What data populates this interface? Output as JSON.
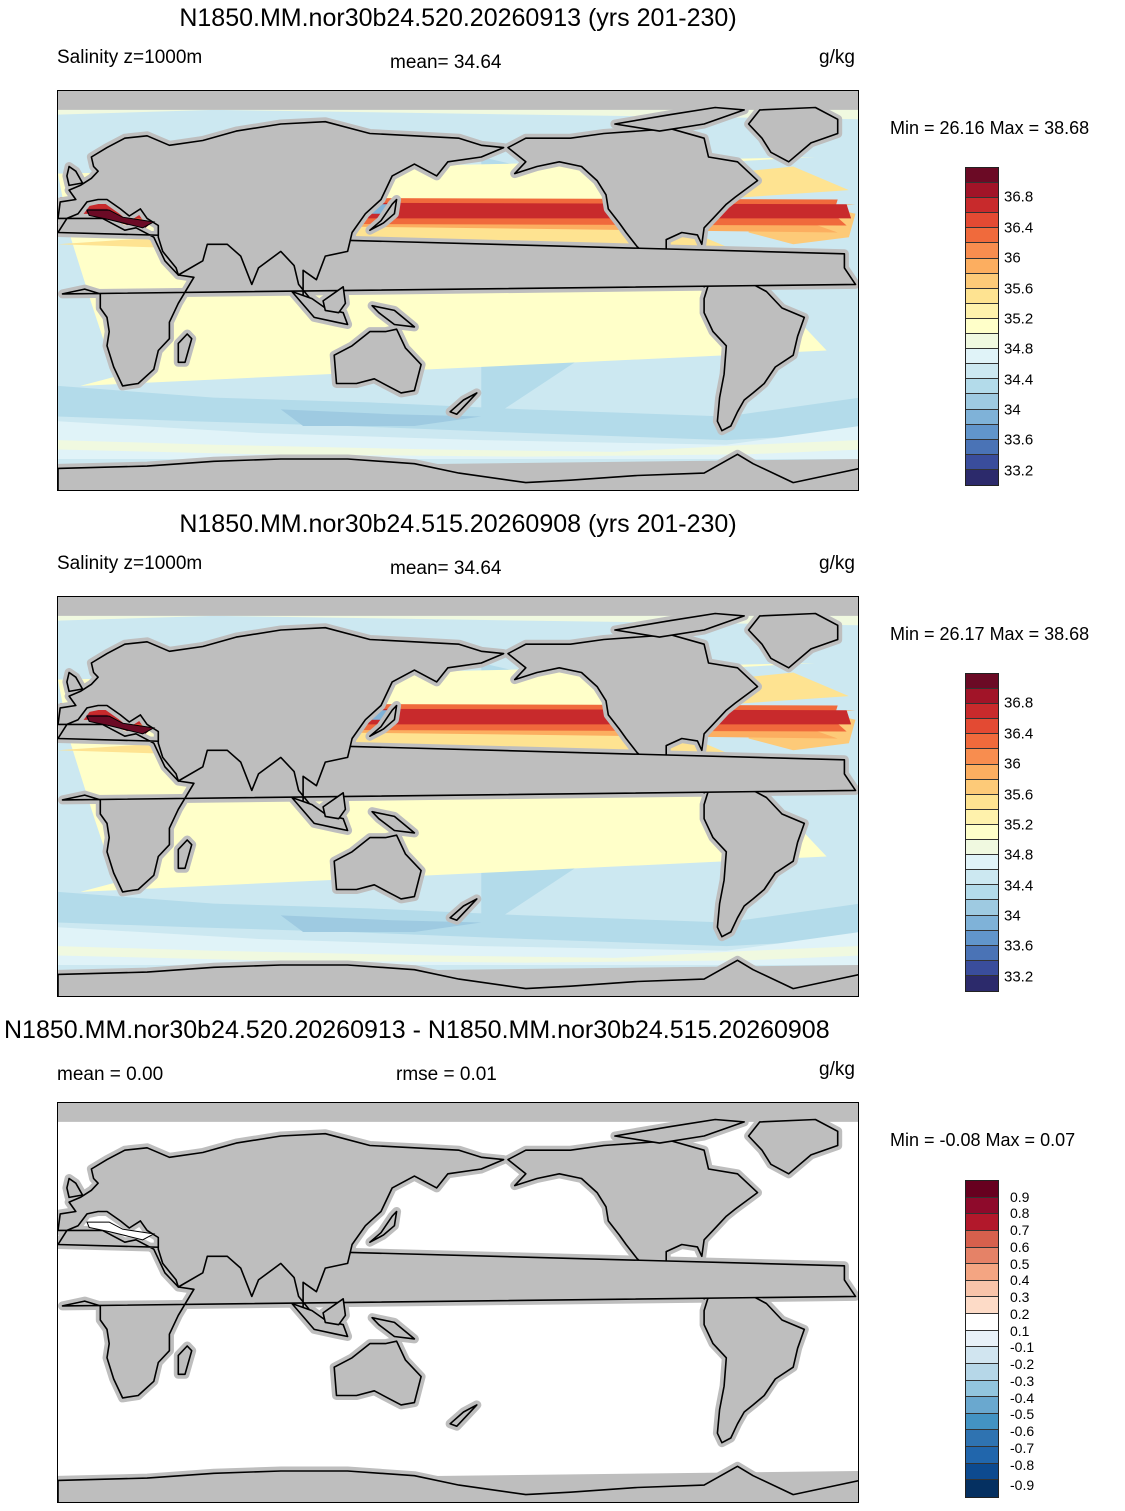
{
  "panels": [
    {
      "title": "N1850.MM.nor30b24.520.20260913 (yrs 201-230)",
      "left_label": "Salinity z=1000m",
      "mid_label": "mean=  34.64",
      "unit": "g/kg",
      "minmax": "Min =  26.16 Max =  38.68",
      "kind": "abs"
    },
    {
      "title": "N1850.MM.nor30b24.515.20260908 (yrs 201-230)",
      "left_label": "Salinity z=1000m",
      "mid_label": "mean=  34.64",
      "unit": "g/kg",
      "minmax": "Min =  26.17 Max =  38.68",
      "kind": "abs"
    },
    {
      "title": "N1850.MM.nor30b24.520.20260913 - N1850.MM.nor30b24.515.20260908",
      "left_label": "mean =   0.00",
      "mid_label": "rmse =   0.01",
      "unit": "g/kg",
      "minmax": "Min =  -0.08 Max =   0.07",
      "kind": "diff"
    }
  ],
  "chart_data": [
    {
      "type": "heatmap",
      "title": "N1850.MM.nor30b24.520.20260913 (yrs 201-230)",
      "variable": "Salinity z=1000m",
      "units": "g/kg",
      "mean": 34.64,
      "min": 26.16,
      "max": 38.68,
      "colorbar_levels": [
        33.2,
        33.4,
        33.6,
        33.8,
        34.0,
        34.2,
        34.4,
        34.6,
        34.8,
        35.0,
        35.2,
        35.4,
        35.6,
        35.8,
        36.0,
        36.2,
        36.4,
        36.6,
        36.8,
        37.0
      ],
      "colorbar_tick_labels": [
        "33.2",
        "33.6",
        "34",
        "34.4",
        "34.8",
        "35.2",
        "35.6",
        "36",
        "36.4",
        "36.8"
      ]
    },
    {
      "type": "heatmap",
      "title": "N1850.MM.nor30b24.515.20260908 (yrs 201-230)",
      "variable": "Salinity z=1000m",
      "units": "g/kg",
      "mean": 34.64,
      "min": 26.17,
      "max": 38.68,
      "colorbar_levels": [
        33.2,
        33.4,
        33.6,
        33.8,
        34.0,
        34.2,
        34.4,
        34.6,
        34.8,
        35.0,
        35.2,
        35.4,
        35.6,
        35.8,
        36.0,
        36.2,
        36.4,
        36.6,
        36.8,
        37.0
      ],
      "colorbar_tick_labels": [
        "33.2",
        "33.6",
        "34",
        "34.4",
        "34.8",
        "35.2",
        "35.6",
        "36",
        "36.4",
        "36.8"
      ]
    },
    {
      "type": "heatmap",
      "title": "N1850.MM.nor30b24.520.20260913 - N1850.MM.nor30b24.515.20260908",
      "units": "g/kg",
      "mean": 0.0,
      "rmse": 0.01,
      "min": -0.08,
      "max": 0.07,
      "colorbar_levels": [
        -0.9,
        -0.8,
        -0.7,
        -0.6,
        -0.5,
        -0.4,
        -0.3,
        -0.2,
        -0.1,
        0.1,
        0.2,
        0.3,
        0.4,
        0.5,
        0.6,
        0.7,
        0.8,
        0.9
      ],
      "colorbar_tick_labels": [
        "0.9",
        "0.8",
        "0.7",
        "0.6",
        "0.5",
        "0.4",
        "0.3",
        "0.2",
        "0.1",
        "-0.1",
        "-0.2",
        "-0.3",
        "-0.4",
        "-0.5",
        "-0.6",
        "-0.7",
        "-0.8",
        "-0.9"
      ]
    }
  ],
  "colors": {
    "land": "#bebebe",
    "abs_scale": [
      "#6b0a25",
      "#a11428",
      "#c82a2c",
      "#e34a33",
      "#f06a3c",
      "#f88d4f",
      "#fcae60",
      "#fdca78",
      "#fee391",
      "#fff2ac",
      "#ffffc9",
      "#f0f9e0",
      "#e0f3f8",
      "#cce8f1",
      "#b3dbea",
      "#9ecae1",
      "#7fb2d8",
      "#6195cb",
      "#4a73b6",
      "#3a4d9c",
      "#2c2a6b"
    ],
    "diff_scale": [
      "#67001f",
      "#8e0a2b",
      "#b2182b",
      "#d6604d",
      "#e58267",
      "#f4a582",
      "#f8c4aa",
      "#fddbc7",
      "#ffffff",
      "#e8f1f8",
      "#d1e5f0",
      "#b6d7e8",
      "#92c5de",
      "#6aa8cf",
      "#4393c3",
      "#2f73b1",
      "#2166ac",
      "#0d4a8f",
      "#053061"
    ]
  }
}
